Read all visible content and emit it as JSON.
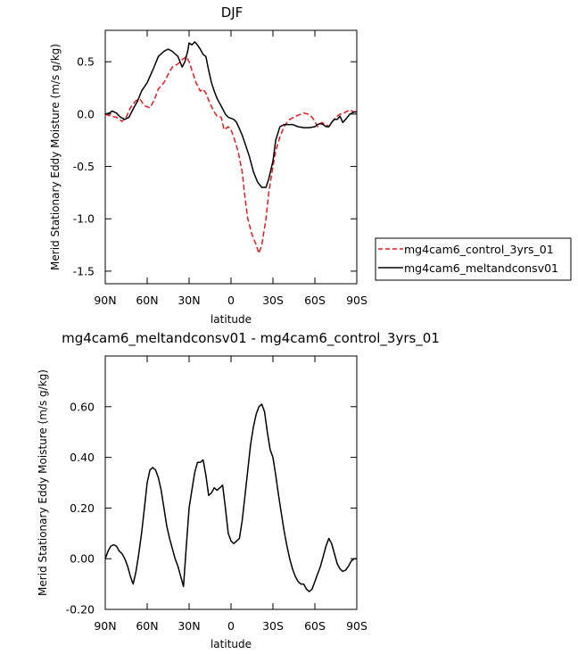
{
  "chart_data": [
    {
      "type": "line",
      "title": "DJF",
      "xlabel": "latitude",
      "ylabel": "Merid Stationary Eddy Moisture (m/s g/kg)",
      "x_ticks": [
        "90N",
        "60N",
        "30N",
        "0",
        "30S",
        "60S",
        "90S"
      ],
      "x_tick_values": [
        90,
        60,
        30,
        0,
        -30,
        -60,
        -90
      ],
      "xlim": [
        90,
        -90
      ],
      "y_ticks": [
        "0.5",
        "0.0",
        "-0.5",
        "-1.0",
        "-1.5"
      ],
      "y_tick_values": [
        0.5,
        0.0,
        -0.5,
        -1.0,
        -1.5
      ],
      "ylim": [
        -1.62,
        0.8
      ],
      "legend_position": "right",
      "series": [
        {
          "name": "mg4cam6_control_3yrs_01",
          "color": "#e8191e",
          "style": "dashed",
          "x": [
            90,
            86,
            82,
            78,
            75,
            72,
            68,
            65,
            62,
            58,
            55,
            52,
            48,
            45,
            42,
            38,
            35,
            32,
            30,
            28,
            25,
            22,
            20,
            18,
            15,
            12,
            10,
            7,
            5,
            2,
            0,
            -2,
            -5,
            -8,
            -10,
            -12,
            -15,
            -18,
            -20,
            -22,
            -25,
            -27,
            -30,
            -32,
            -35,
            -38,
            -40,
            -42,
            -45,
            -48,
            -50,
            -52,
            -55,
            -58,
            -60,
            -62,
            -65,
            -68,
            -70,
            -72,
            -75,
            -78,
            -80,
            -82,
            -85,
            -88,
            -90
          ],
          "y": [
            0.0,
            -0.02,
            -0.03,
            -0.07,
            -0.03,
            0.06,
            0.13,
            0.14,
            0.08,
            0.06,
            0.13,
            0.24,
            0.3,
            0.38,
            0.45,
            0.48,
            0.52,
            0.55,
            0.5,
            0.42,
            0.3,
            0.22,
            0.24,
            0.2,
            0.1,
            0.02,
            -0.02,
            -0.03,
            -0.15,
            -0.12,
            -0.15,
            -0.22,
            -0.35,
            -0.55,
            -0.8,
            -1.0,
            -1.15,
            -1.25,
            -1.33,
            -1.25,
            -1.0,
            -0.75,
            -0.5,
            -0.35,
            -0.22,
            -0.12,
            -0.08,
            -0.05,
            -0.03,
            -0.01,
            0.0,
            0.01,
            0.0,
            -0.03,
            -0.07,
            -0.12,
            -0.08,
            -0.1,
            -0.12,
            -0.08,
            -0.03,
            0.0,
            0.0,
            0.02,
            0.04,
            0.02,
            0.02
          ]
        },
        {
          "name": "mg4cam6_meltandconsv01",
          "color": "#000000",
          "style": "solid",
          "x": [
            90,
            87,
            85,
            82,
            79,
            76,
            73,
            70,
            67,
            64,
            60,
            56,
            52,
            48,
            45,
            42,
            38,
            35,
            33,
            31,
            30,
            28,
            26,
            24,
            22,
            20,
            18,
            16,
            14,
            12,
            10,
            8,
            6,
            4,
            2,
            0,
            -2,
            -4,
            -6,
            -8,
            -10,
            -13,
            -16,
            -19,
            -22,
            -25,
            -27,
            -30,
            -32,
            -35,
            -38,
            -41,
            -44,
            -48,
            -52,
            -56,
            -60,
            -62,
            -64,
            -66,
            -68,
            -70,
            -72,
            -74,
            -76,
            -78,
            -80,
            -82,
            -85,
            -88,
            -90
          ],
          "y": [
            0.0,
            0.01,
            0.03,
            0.01,
            -0.03,
            -0.05,
            -0.03,
            0.05,
            0.12,
            0.22,
            0.3,
            0.42,
            0.55,
            0.6,
            0.62,
            0.6,
            0.55,
            0.45,
            0.5,
            0.6,
            0.68,
            0.66,
            0.69,
            0.66,
            0.62,
            0.57,
            0.55,
            0.42,
            0.3,
            0.22,
            0.15,
            0.1,
            0.05,
            0.0,
            -0.03,
            -0.04,
            -0.05,
            -0.08,
            -0.14,
            -0.2,
            -0.28,
            -0.4,
            -0.55,
            -0.65,
            -0.7,
            -0.7,
            -0.62,
            -0.45,
            -0.25,
            -0.12,
            -0.1,
            -0.1,
            -0.1,
            -0.12,
            -0.13,
            -0.13,
            -0.12,
            -0.1,
            -0.09,
            -0.1,
            -0.12,
            -0.12,
            -0.08,
            -0.05,
            -0.05,
            -0.02,
            -0.08,
            -0.05,
            0.0,
            0.02,
            0.02
          ]
        }
      ]
    },
    {
      "type": "line",
      "title": "mg4cam6_meltandconsv01 - mg4cam6_control_3yrs_01",
      "xlabel": "latitude",
      "ylabel": "Merid Stationary Eddy Moisture (m/s g/kg)",
      "x_ticks": [
        "90N",
        "60N",
        "30N",
        "0",
        "30S",
        "60S",
        "90S"
      ],
      "x_tick_values": [
        90,
        60,
        30,
        0,
        -30,
        -60,
        -90
      ],
      "xlim": [
        90,
        -90
      ],
      "y_ticks": [
        "0.60",
        "0.40",
        "0.20",
        "0.00",
        "-0.20"
      ],
      "y_tick_values": [
        0.6,
        0.4,
        0.2,
        0.0,
        -0.2
      ],
      "ylim": [
        -0.2,
        0.8
      ],
      "series": [
        {
          "color": "#000000",
          "style": "solid",
          "x": [
            90,
            88,
            86,
            84,
            82,
            80,
            78,
            76,
            74,
            72,
            70,
            68,
            66,
            64,
            62,
            60,
            58,
            56,
            54,
            52,
            50,
            48,
            46,
            44,
            42,
            40,
            38,
            36,
            34,
            32,
            30,
            28,
            26,
            24,
            22,
            20,
            18,
            16,
            14,
            12,
            10,
            8,
            6,
            4,
            2,
            0,
            -2,
            -4,
            -6,
            -8,
            -10,
            -12,
            -14,
            -16,
            -18,
            -20,
            -22,
            -24,
            -26,
            -28,
            -30,
            -32,
            -34,
            -36,
            -38,
            -40,
            -42,
            -44,
            -46,
            -48,
            -50,
            -52,
            -54,
            -56,
            -58,
            -60,
            -62,
            -64,
            -66,
            -68,
            -70,
            -72,
            -74,
            -76,
            -78,
            -80,
            -82,
            -84,
            -86,
            -88,
            -90
          ],
          "y": [
            0.0,
            0.03,
            0.05,
            0.055,
            0.05,
            0.03,
            0.02,
            0.0,
            -0.03,
            -0.07,
            -0.1,
            -0.05,
            0.02,
            0.1,
            0.2,
            0.3,
            0.35,
            0.36,
            0.35,
            0.32,
            0.27,
            0.2,
            0.13,
            0.08,
            0.04,
            0.0,
            -0.03,
            -0.07,
            -0.11,
            0.05,
            0.2,
            0.27,
            0.34,
            0.38,
            0.38,
            0.39,
            0.33,
            0.25,
            0.26,
            0.28,
            0.27,
            0.28,
            0.29,
            0.2,
            0.1,
            0.07,
            0.06,
            0.07,
            0.08,
            0.15,
            0.25,
            0.35,
            0.45,
            0.52,
            0.57,
            0.6,
            0.61,
            0.58,
            0.5,
            0.43,
            0.4,
            0.33,
            0.25,
            0.18,
            0.11,
            0.05,
            0.0,
            -0.04,
            -0.07,
            -0.09,
            -0.1,
            -0.1,
            -0.12,
            -0.13,
            -0.12,
            -0.09,
            -0.06,
            -0.03,
            0.01,
            0.05,
            0.08,
            0.06,
            0.02,
            -0.02,
            -0.04,
            -0.05,
            -0.045,
            -0.03,
            -0.01,
            0.0,
            0.0
          ]
        }
      ]
    }
  ]
}
